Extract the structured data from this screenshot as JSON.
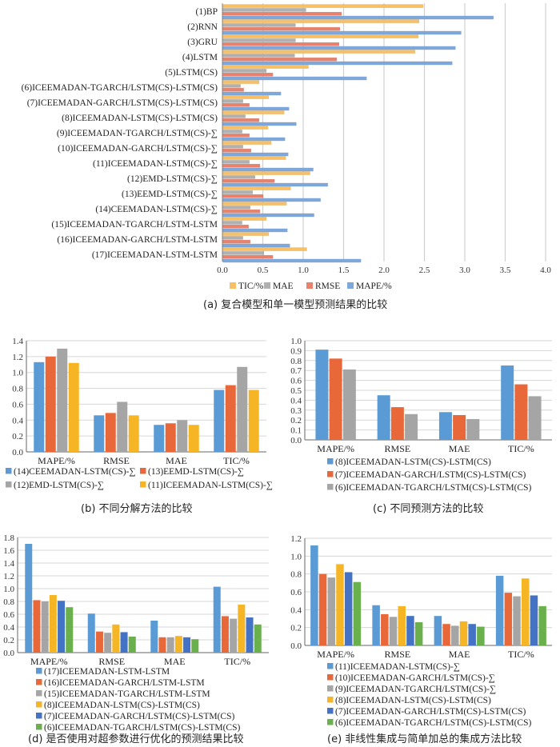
{
  "colors": {
    "TIC": "#f7c067",
    "MAE": "#b0b0b0",
    "RMSE": "#e9826c",
    "MAPE": "#7ea7db",
    "blue": "#5b9bd5",
    "orange": "#e8683a",
    "gray": "#a5a5a5",
    "yellow": "#f5b524",
    "darkblue": "#4472c4",
    "green": "#6ab04c"
  },
  "chart_data": [
    {
      "id": "a",
      "type": "bar",
      "orientation": "horizontal",
      "caption": "(a) 复合模型和单一模型预测结果的比较",
      "categories": [
        "(1)BP",
        "(2)RNN",
        "(3)GRU",
        "(4)LSTM",
        "(5)LSTM(CS)",
        "(6)ICEEMADAN-TGARCH/LSTM(CS)-LSTM(CS)",
        "(7)ICEEMADAN-GARCH/LSTM(CS)-LSTM(CS)",
        "(8)ICEEMADAN-LSTM(CS)-LSTM(CS)",
        "(9)ICEEMADAN-TGARCH/LSTM(CS)-∑",
        "(10)ICEEMADAN-GARCH/LSTM(CS)-∑",
        "(11)ICEEMADAN-LSTM(CS)-∑",
        "(12)EMD-LSTM(CS)-∑",
        "(13)EEMD-LSTM(CS)-∑",
        "(14)CEEMADAN-LSTM(CS)-∑",
        "(15)ICEEMADAN-TGARCH/LSTM-LSTM",
        "(16)ICEEMADAN-GARCH/LSTM-LSTM",
        "(17)ICEEMADAN-LSTM-LSTM"
      ],
      "series": [
        {
          "name": "TIC/%",
          "color_key": "TIC",
          "values": [
            2.48,
            2.43,
            2.42,
            2.38,
            1.06,
            0.45,
            0.57,
            0.76,
            0.56,
            0.6,
            0.78,
            1.08,
            0.84,
            0.79,
            0.54,
            0.57,
            1.04
          ]
        },
        {
          "name": "MAE",
          "color_key": "MAE",
          "values": [
            1.03,
            0.9,
            0.9,
            0.89,
            0.54,
            0.22,
            0.25,
            0.28,
            0.24,
            0.25,
            0.33,
            0.4,
            0.37,
            0.34,
            0.24,
            0.25,
            0.51
          ]
        },
        {
          "name": "RMSE",
          "color_key": "RMSE",
          "values": [
            1.47,
            1.45,
            1.44,
            1.41,
            0.62,
            0.26,
            0.33,
            0.45,
            0.33,
            0.35,
            0.46,
            0.64,
            0.5,
            0.46,
            0.32,
            0.34,
            0.62
          ]
        },
        {
          "name": "MAPE/%",
          "color_key": "MAPE",
          "values": [
            3.35,
            2.95,
            2.88,
            2.84,
            1.78,
            0.72,
            0.82,
            0.91,
            0.77,
            0.81,
            1.12,
            1.3,
            1.21,
            1.13,
            0.8,
            0.83,
            1.71
          ]
        }
      ],
      "xlim": [
        0,
        4.0
      ],
      "xticks": [
        "0.0",
        "0.5",
        "1.0",
        "1.5",
        "2.0",
        "2.5",
        "3.0",
        "3.5",
        "4.0"
      ],
      "grid": true,
      "legend_placement": "bottom"
    },
    {
      "id": "b",
      "type": "bar",
      "caption": "(b) 不同分解方法的比较",
      "categories": [
        "MAPE/%",
        "RMSE",
        "MAE",
        "TIC/%"
      ],
      "series": [
        {
          "name": "(14)CEEMADAN-LSTM(CS)-∑",
          "color_key": "blue",
          "values": [
            1.13,
            0.46,
            0.34,
            0.78
          ]
        },
        {
          "name": "(13)EEMD-LSTM(CS)-∑",
          "color_key": "orange",
          "values": [
            1.2,
            0.49,
            0.36,
            0.84
          ]
        },
        {
          "name": "(12)EMD-LSTM(CS)-∑",
          "color_key": "gray",
          "values": [
            1.3,
            0.63,
            0.4,
            1.07
          ]
        },
        {
          "name": "(11)ICEEMADAN-LSTM(CS)-∑",
          "color_key": "yellow",
          "values": [
            1.12,
            0.46,
            0.34,
            0.78
          ]
        }
      ],
      "ylim": [
        0,
        1.4
      ],
      "yticks": [
        "0.0",
        "0.2",
        "0.4",
        "0.6",
        "0.8",
        "1.0",
        "1.2",
        "1.4"
      ],
      "grid": true,
      "legend_placement": "bottom"
    },
    {
      "id": "c",
      "type": "bar",
      "caption": "(c) 不同预测方法的比较",
      "categories": [
        "MAPE/%",
        "RMSE",
        "MAE",
        "TIC/%"
      ],
      "series": [
        {
          "name": "(8)ICEEMADAN-LSTM(CS)-LSTM(CS)",
          "color_key": "blue",
          "values": [
            0.91,
            0.45,
            0.28,
            0.75
          ]
        },
        {
          "name": "(7)ICEEMADAN-GARCH/LSTM(CS)-LSTM(CS)",
          "color_key": "orange",
          "values": [
            0.82,
            0.33,
            0.25,
            0.56
          ]
        },
        {
          "name": "(6)ICEEMADAN-TGARCH/LSTM(CS)-LSTM(CS)",
          "color_key": "gray",
          "values": [
            0.71,
            0.26,
            0.21,
            0.44
          ]
        }
      ],
      "ylim": [
        0,
        1.0
      ],
      "yticks": [
        "0.0",
        "0.1",
        "0.2",
        "0.3",
        "0.4",
        "0.5",
        "0.6",
        "0.7",
        "0.8",
        "0.9",
        "1.0"
      ],
      "grid": true,
      "legend_placement": "bottom"
    },
    {
      "id": "d",
      "type": "bar",
      "caption": "(d) 是否使用对超参数进行优化的预测结果比较",
      "categories": [
        "MAPE/%",
        "RMSE",
        "MAE",
        "TIC/%"
      ],
      "series": [
        {
          "name": "(17)ICEEMADAN-LSTM-LSTM",
          "color_key": "blue",
          "values": [
            1.7,
            0.61,
            0.5,
            1.03
          ]
        },
        {
          "name": "(16)ICEEMADAN-GARCH/LSTM-LSTM",
          "color_key": "orange",
          "values": [
            0.82,
            0.33,
            0.24,
            0.57
          ]
        },
        {
          "name": "(15)ICEEMADAN-TGARCH/LSTM-LSTM",
          "color_key": "gray",
          "values": [
            0.8,
            0.31,
            0.24,
            0.53
          ]
        },
        {
          "name": "(8)ICEEMADAN-LSTM(CS)-LSTM(CS)",
          "color_key": "yellow",
          "values": [
            0.9,
            0.44,
            0.26,
            0.75
          ]
        },
        {
          "name": "(7)ICEEMADAN-GARCH/LSTM(CS)-LSTM(CS)",
          "color_key": "darkblue",
          "values": [
            0.81,
            0.32,
            0.24,
            0.55
          ]
        },
        {
          "name": "(6)ICEEMADAN-TGARCH/LSTM(CS)-LSTM(CS)",
          "color_key": "green",
          "values": [
            0.71,
            0.25,
            0.21,
            0.44
          ]
        }
      ],
      "ylim": [
        0,
        1.8
      ],
      "yticks": [
        "0.0",
        "0.2",
        "0.4",
        "0.6",
        "0.8",
        "1.0",
        "1.2",
        "1.4",
        "1.6",
        "1.8"
      ],
      "grid": true,
      "legend_placement": "bottom"
    },
    {
      "id": "e",
      "type": "bar",
      "caption": "(e) 非线性集成与简单加总的集成方法比较",
      "categories": [
        "MAPE/%",
        "RMSE",
        "MAE",
        "TIC/%"
      ],
      "series": [
        {
          "name": "(11)ICEEMADAN-LSTM(CS)-∑",
          "color_key": "blue",
          "values": [
            1.12,
            0.45,
            0.33,
            0.78
          ]
        },
        {
          "name": "(10)ICEEMADAN-GARCH/LSTM(CS)-∑",
          "color_key": "orange",
          "values": [
            0.8,
            0.35,
            0.24,
            0.59
          ]
        },
        {
          "name": "(9)ICEEMADAN-TGARCH/LSTM(CS)-∑",
          "color_key": "gray",
          "values": [
            0.76,
            0.32,
            0.22,
            0.55
          ]
        },
        {
          "name": "(8)ICEEMADAN-LSTM(CS)-LSTM(CS)",
          "color_key": "yellow",
          "values": [
            0.91,
            0.44,
            0.27,
            0.75
          ]
        },
        {
          "name": "(7)ICEEMADAN-GARCH/LSTM(CS)-LSTM(CS)",
          "color_key": "darkblue",
          "values": [
            0.82,
            0.33,
            0.24,
            0.56
          ]
        },
        {
          "name": "(6)ICEEMADAN-TGARCH/LSTM(CS)-LSTM(CS)",
          "color_key": "green",
          "values": [
            0.71,
            0.26,
            0.21,
            0.44
          ]
        }
      ],
      "ylim": [
        0,
        1.2
      ],
      "yticks": [
        "0.0",
        "0.2",
        "0.4",
        "0.6",
        "0.8",
        "1.0",
        "1.2"
      ],
      "grid": true,
      "legend_placement": "bottom"
    }
  ]
}
